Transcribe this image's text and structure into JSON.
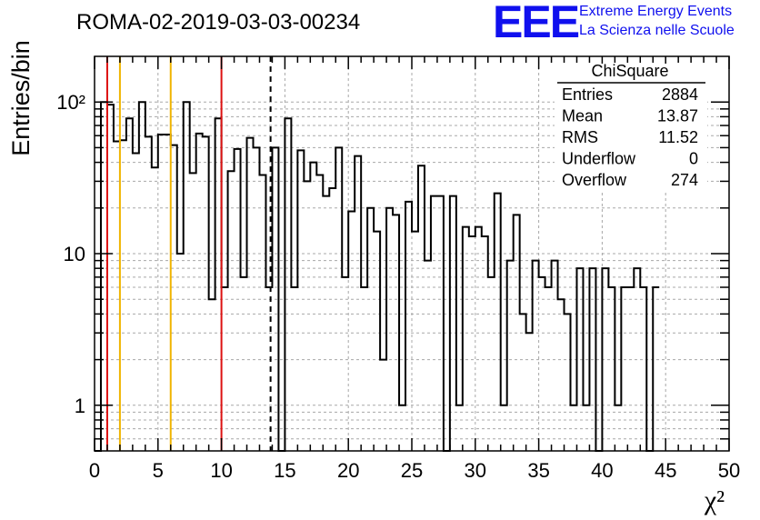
{
  "branding": {
    "logo": "EEE",
    "line1": "Extreme Energy Events",
    "line2": "La Scienza nelle Scuole"
  },
  "chart_data": {
    "type": "histogram",
    "title": "ROMA-02-2019-03-03-00234",
    "xlabel": "χ²",
    "ylabel": "Entries/bin",
    "xlim": [
      0,
      50
    ],
    "ylim": [
      0.5,
      200
    ],
    "yscale": "log",
    "grid": true,
    "bin_width": 0.5,
    "x_ticks": [
      "0",
      "5",
      "10",
      "15",
      "20",
      "25",
      "30",
      "35",
      "40",
      "45",
      "50"
    ],
    "y_ticks": [
      {
        "value": 1,
        "label": "1"
      },
      {
        "value": 10,
        "label": "10"
      },
      {
        "value": 100,
        "label": "10²"
      }
    ],
    "counts": [
      0,
      100,
      96,
      55,
      56,
      78,
      46,
      100,
      59,
      37,
      61,
      61,
      52,
      10,
      100,
      34,
      62,
      59,
      5,
      78,
      6,
      35,
      49,
      7,
      58,
      50,
      33,
      6,
      50,
      0,
      78,
      6,
      48,
      30,
      40,
      33,
      24,
      27,
      50,
      7,
      19,
      44,
      6,
      20,
      14,
      2,
      20,
      18,
      1,
      22,
      14,
      38,
      9,
      24,
      24,
      0,
      24,
      1,
      15,
      13,
      15,
      13,
      7,
      25,
      1,
      9,
      18,
      4,
      3,
      9,
      7,
      6,
      9,
      5,
      4,
      1,
      8,
      1,
      8,
      0,
      8,
      6,
      1,
      6,
      6,
      8,
      6,
      0,
      6
    ],
    "vertical_lines": [
      {
        "x": 1,
        "color": "#dd1111",
        "style": "solid"
      },
      {
        "x": 2,
        "color": "#f0b400",
        "style": "solid"
      },
      {
        "x": 6,
        "color": "#f0b400",
        "style": "solid"
      },
      {
        "x": 10,
        "color": "#dd1111",
        "style": "solid"
      },
      {
        "x": 13.87,
        "color": "#000000",
        "style": "dashed"
      }
    ],
    "stats_box": {
      "name": "ChiSquare",
      "rows": [
        {
          "label": "Entries",
          "value": "2884"
        },
        {
          "label": "Mean",
          "value": "13.87"
        },
        {
          "label": "RMS",
          "value": "11.52"
        },
        {
          "label": "Underflow",
          "value": "0"
        },
        {
          "label": "Overflow",
          "value": "274"
        }
      ]
    }
  }
}
